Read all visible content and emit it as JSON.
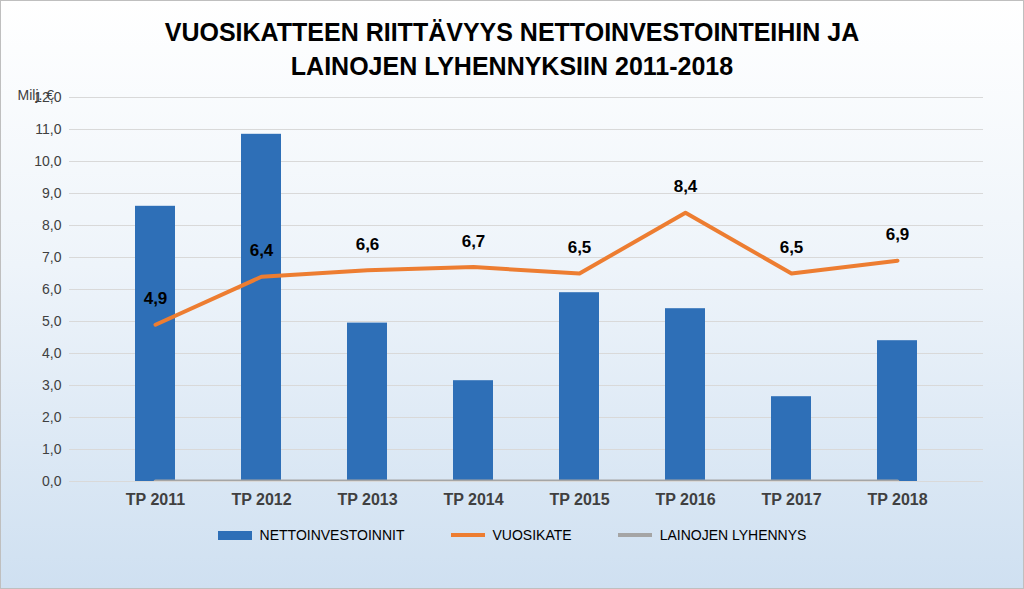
{
  "chart_data": {
    "type": "bar",
    "title": "VUOSIKATTEEN RIITTÄVYYS NETTOINVESTOINTEIHIN JA LAINOJEN LYHENNYKSIIN 2011-2018",
    "y_label": "Milj. €",
    "categories": [
      "TP 2011",
      "TP 2012",
      "TP 2013",
      "TP 2014",
      "TP 2015",
      "TP 2016",
      "TP 2017",
      "TP 2018"
    ],
    "series": [
      {
        "name": "NETTOINVESTOINNIT",
        "type": "bar",
        "color": "#2e6fb7",
        "values": [
          8.6,
          10.85,
          4.95,
          3.15,
          5.9,
          5.4,
          2.65,
          4.4
        ]
      },
      {
        "name": "VUOSIKATE",
        "type": "line",
        "color": "#ed7d31",
        "data_labels": true,
        "values": [
          4.9,
          6.4,
          6.6,
          6.7,
          6.5,
          8.4,
          6.5,
          6.9
        ],
        "value_labels": [
          "4,9",
          "6,4",
          "6,6",
          "6,7",
          "6,5",
          "8,4",
          "6,5",
          "6,9"
        ]
      },
      {
        "name": "LAINOJEN LYHENNYS",
        "type": "line",
        "color": "#a5a5a5",
        "values": [
          0,
          0,
          0,
          0,
          0,
          0,
          0,
          0
        ]
      }
    ],
    "ylim": [
      0,
      12
    ],
    "yticks": [
      {
        "value": 0,
        "label": "0,0"
      },
      {
        "value": 1,
        "label": "1,0"
      },
      {
        "value": 2,
        "label": "2,0"
      },
      {
        "value": 3,
        "label": "3,0"
      },
      {
        "value": 4,
        "label": "4,0"
      },
      {
        "value": 5,
        "label": "5,0"
      },
      {
        "value": 6,
        "label": "6,0"
      },
      {
        "value": 7,
        "label": "7,0"
      },
      {
        "value": 8,
        "label": "8,0"
      },
      {
        "value": 9,
        "label": "9,0"
      },
      {
        "value": 10,
        "label": "10,0"
      },
      {
        "value": 11,
        "label": "11,0"
      },
      {
        "value": 12,
        "label": "12,0"
      }
    ],
    "grid": true,
    "legend": "bottom"
  }
}
